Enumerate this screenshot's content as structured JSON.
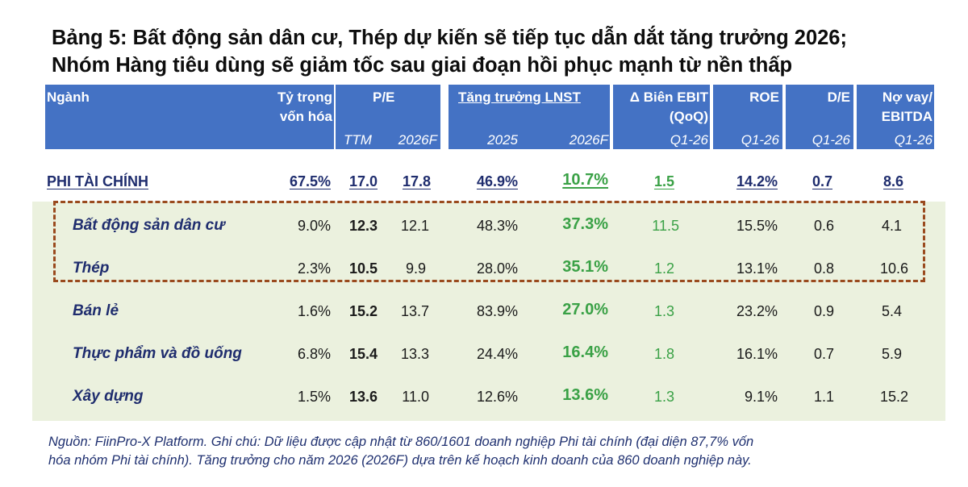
{
  "title": {
    "line1": "Bảng 5: Bất động sản dân cư, Thép dự kiến sẽ tiếp tục dẫn dắt tăng trưởng 2026;",
    "line2": "Nhóm Hàng tiêu dùng sẽ giảm tốc sau giai đoạn hồi phục mạnh từ nền thấp"
  },
  "header": {
    "nganh": "Ngành",
    "ty_trong_1": "Tỷ trọng",
    "ty_trong_2": "vốn hóa",
    "pe": "P/E",
    "pe_ttm": "TTM",
    "pe_2026f": "2026F",
    "lnst": "Tăng trưởng LNST",
    "lnst_2025": "2025",
    "lnst_2026f": "2026F",
    "ebit_1": "Δ Biên EBIT",
    "ebit_2": "(QoQ)",
    "ebit_sub": "Q1-26",
    "roe": "ROE",
    "roe_sub": "Q1-26",
    "de": "D/E",
    "de_sub": "Q1-26",
    "debt_1": "Nợ vay/",
    "debt_2": "EBITDA",
    "debt_sub": "Q1-26"
  },
  "rows": [
    {
      "name": "PHI TÀI CHÍNH",
      "weight": "67.5%",
      "pe_ttm": "17.0",
      "pe_2026f": "17.8",
      "g2025": "46.9%",
      "g2026f": "10.7%",
      "ebit": "1.5",
      "roe": "14.2%",
      "de": "0.7",
      "debt": "8.6"
    },
    {
      "name": "Bất động sản dân cư",
      "weight": "9.0%",
      "pe_ttm": "12.3",
      "pe_2026f": "12.1",
      "g2025": "48.3%",
      "g2026f": "37.3%",
      "ebit": "11.5",
      "roe": "15.5%",
      "de": "0.6",
      "debt": "4.1"
    },
    {
      "name": "Thép",
      "weight": "2.3%",
      "pe_ttm": "10.5",
      "pe_2026f": "9.9",
      "g2025": "28.0%",
      "g2026f": "35.1%",
      "ebit": "1.2",
      "roe": "13.1%",
      "de": "0.8",
      "debt": "10.6"
    },
    {
      "name": "Bán lẻ",
      "weight": "1.6%",
      "pe_ttm": "15.2",
      "pe_2026f": "13.7",
      "g2025": "83.9%",
      "g2026f": "27.0%",
      "ebit": "1.3",
      "roe": "23.2%",
      "de": "0.9",
      "debt": "5.4"
    },
    {
      "name": "Thực phẩm và đồ uống",
      "weight": "6.8%",
      "pe_ttm": "15.4",
      "pe_2026f": "13.3",
      "g2025": "24.4%",
      "g2026f": "16.4%",
      "ebit": "1.8",
      "roe": "16.1%",
      "de": "0.7",
      "debt": "5.9"
    },
    {
      "name": "Xây dựng",
      "weight": "1.5%",
      "pe_ttm": "13.6",
      "pe_2026f": "11.0",
      "g2025": "12.6%",
      "g2026f": "13.6%",
      "ebit": "1.3",
      "roe": "9.1%",
      "de": "1.1",
      "debt": "15.2"
    }
  ],
  "footnote": {
    "line1": "Nguồn: FiinPro-X Platform. Ghi chú: Dữ liệu được cập nhật từ  860/1601 doanh nghiệp Phi tài chính (đại diện 87,7% vốn",
    "line2": "hóa nhóm Phi tài chính). Tăng trưởng cho năm 2026 (2026F) dựa trên kế hoạch kinh doanh của 860 doanh nghiệp này."
  }
}
